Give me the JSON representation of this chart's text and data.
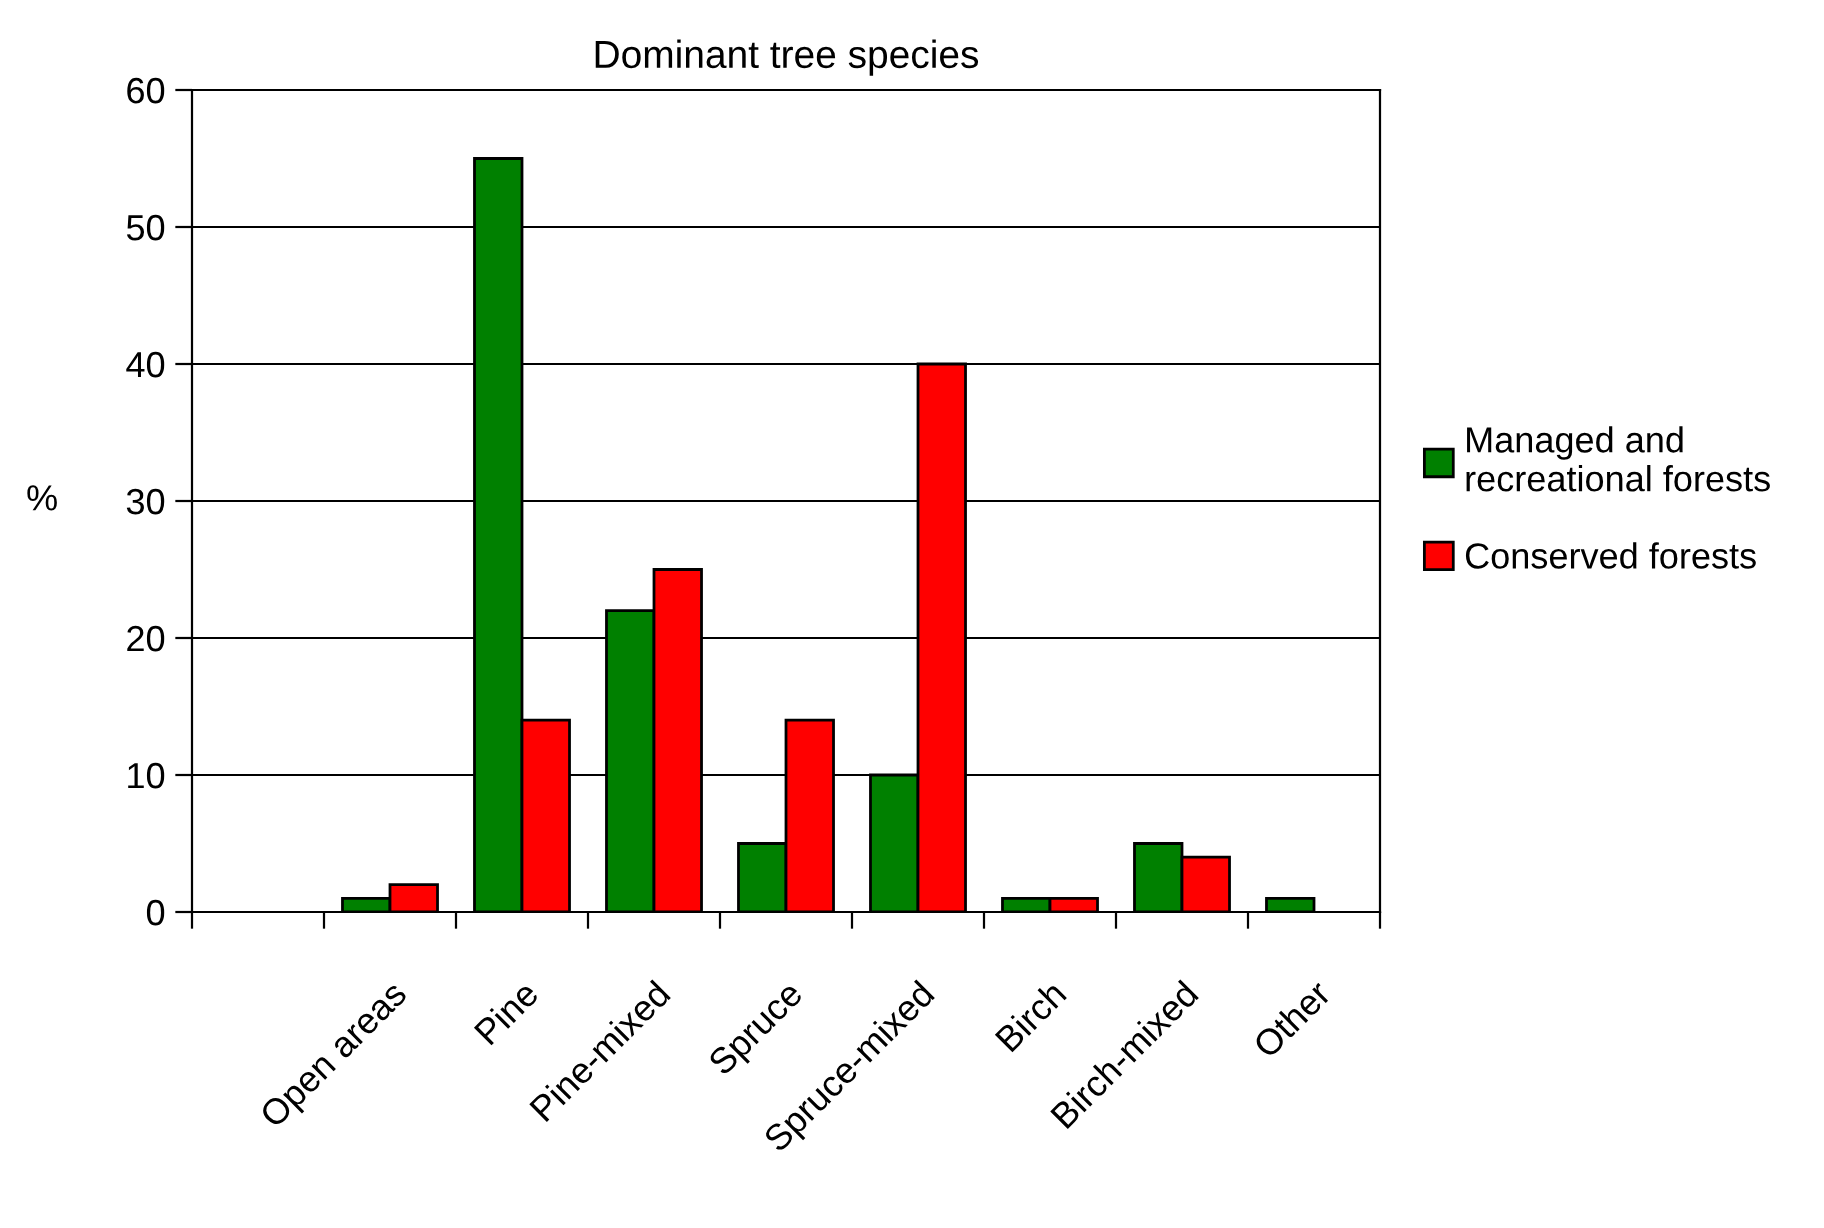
{
  "chart_data": {
    "type": "bar",
    "title": "Dominant tree species",
    "ylabel": "%",
    "categories": [
      null,
      "Open areas",
      "Pine",
      "Pine-mixed",
      "Spruce",
      "Spruce-mixed",
      "Birch",
      "Birch-mixed",
      "Other"
    ],
    "series": [
      {
        "name": "Managed and\nrecreational forests",
        "color": "#008000",
        "values": [
          null,
          1,
          55,
          22,
          5,
          10,
          1,
          5,
          1
        ]
      },
      {
        "name": "Conserved forests",
        "color": "#ff0000",
        "values": [
          null,
          2,
          14,
          25,
          14,
          40,
          1,
          4,
          null
        ]
      }
    ],
    "ylim": [
      0,
      60
    ],
    "yticks": [
      0,
      10,
      20,
      30,
      40,
      50,
      60
    ],
    "grid": "y",
    "legend": "right"
  }
}
